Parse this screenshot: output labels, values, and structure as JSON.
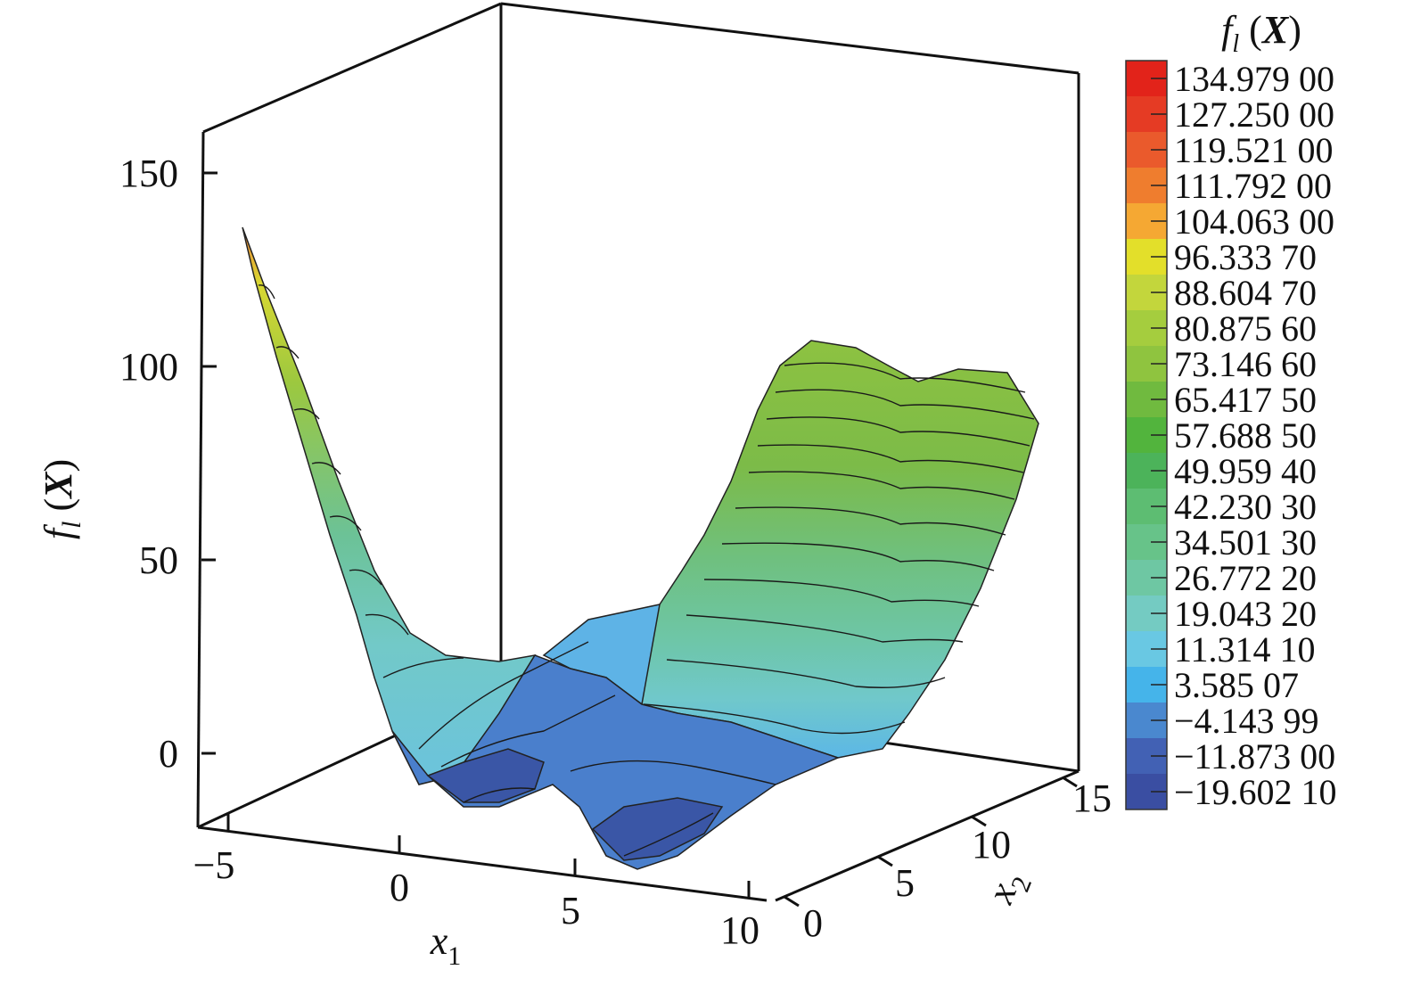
{
  "chart_data": {
    "type": "surface",
    "zlabel": {
      "f": "f",
      "sub": "l",
      "paren_open": " (",
      "var": "X",
      "paren_close": ")"
    },
    "xlabel": {
      "var": "x",
      "sub": "1"
    },
    "ylabel": {
      "var": "x",
      "sub": "2"
    },
    "x_ticks": [
      "−5",
      "0",
      "5",
      "10"
    ],
    "y_ticks": [
      "0",
      "5",
      "10",
      "15"
    ],
    "z_ticks": [
      "0",
      "50",
      "100",
      "150"
    ],
    "xlim": [
      -5,
      10
    ],
    "ylim": [
      0,
      15
    ],
    "zlim": [
      -20,
      160
    ],
    "legend_position": "right",
    "colorbar": {
      "title": {
        "f": "f",
        "sub": "l",
        "paren_open": " (",
        "var": "X",
        "paren_close": ")"
      },
      "levels": [
        {
          "label": "134.979 00",
          "color": "#e2231a"
        },
        {
          "label": "127.250 00",
          "color": "#e53b24"
        },
        {
          "label": "119.521 00",
          "color": "#ea5a2c"
        },
        {
          "label": "111.792 00",
          "color": "#ef7d2e"
        },
        {
          "label": "104.063 00",
          "color": "#f5a833"
        },
        {
          "label": "96.333 70",
          "color": "#e3df2a"
        },
        {
          "label": "88.604 70",
          "color": "#c3d63c"
        },
        {
          "label": "80.875 60",
          "color": "#a5cd3e"
        },
        {
          "label": "73.146 60",
          "color": "#8fc43f"
        },
        {
          "label": "65.417 50",
          "color": "#70ba3f"
        },
        {
          "label": "57.688 50",
          "color": "#52b43d"
        },
        {
          "label": "49.959 40",
          "color": "#4cb35a"
        },
        {
          "label": "42.230 30",
          "color": "#5dbd72"
        },
        {
          "label": "34.501 30",
          "color": "#67c389"
        },
        {
          "label": "26.772 20",
          "color": "#6ec7a3"
        },
        {
          "label": "19.043 20",
          "color": "#74cbc2"
        },
        {
          "label": "11.314 10",
          "color": "#69c8e3"
        },
        {
          "label": "3.585 07",
          "color": "#45b4ea"
        },
        {
          "label": "−4.143 99",
          "color": "#4a88cf"
        },
        {
          "label": "−11.873 00",
          "color": "#4261b4"
        },
        {
          "label": "−19.602 10",
          "color": "#3a4ea2"
        }
      ]
    }
  }
}
